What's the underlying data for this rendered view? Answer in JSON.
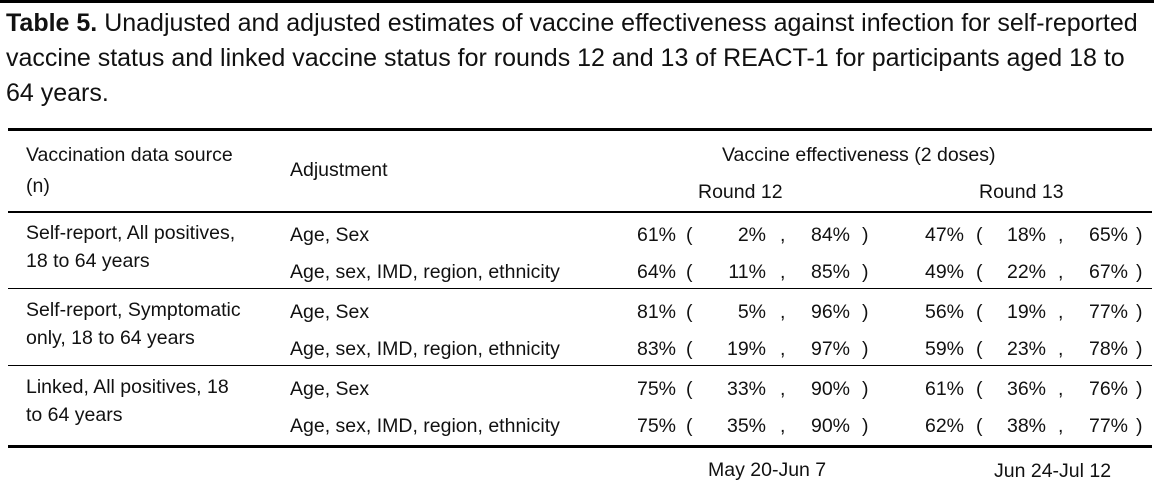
{
  "caption": {
    "label": "Table 5.",
    "text": " Unadjusted and adjusted estimates of vaccine effectiveness against infection for self-reported vaccine status and linked vaccine status for rounds 12 and 13 of REACT-1 for participants aged 18 to 64 years."
  },
  "header": {
    "source_line1": "Vaccination data source",
    "source_line2": "(n)",
    "adjustment": "Adjustment",
    "ve_title": "Vaccine effectiveness (2 doses)",
    "round12": "Round 12",
    "round13": "Round 13"
  },
  "groups": [
    {
      "source_line1": "Self-report, All positives,",
      "source_line2": "18 to 64 years",
      "rows": [
        {
          "adjustment": "Age, Sex",
          "r12": {
            "est": "61%",
            "lo": "2%",
            "hi": "84%"
          },
          "r13": {
            "est": "47%",
            "lo": "18%",
            "hi": "65%"
          }
        },
        {
          "adjustment": "Age, sex, IMD, region, ethnicity",
          "r12": {
            "est": "64%",
            "lo": "11%",
            "hi": "85%"
          },
          "r13": {
            "est": "49%",
            "lo": "22%",
            "hi": "67%"
          }
        }
      ]
    },
    {
      "source_line1": "Self-report, Symptomatic",
      "source_line2": "only, 18 to 64 years",
      "rows": [
        {
          "adjustment": "Age, Sex",
          "r12": {
            "est": "81%",
            "lo": "5%",
            "hi": "96%"
          },
          "r13": {
            "est": "56%",
            "lo": "19%",
            "hi": "77%"
          }
        },
        {
          "adjustment": "Age, sex, IMD, region, ethnicity",
          "r12": {
            "est": "83%",
            "lo": "19%",
            "hi": "97%"
          },
          "r13": {
            "est": "59%",
            "lo": "23%",
            "hi": "78%"
          }
        }
      ]
    },
    {
      "source_line1": "Linked, All positives, 18",
      "source_line2": "to 64 years",
      "rows": [
        {
          "adjustment": "Age, Sex",
          "r12": {
            "est": "75%",
            "lo": "33%",
            "hi": "90%"
          },
          "r13": {
            "est": "61%",
            "lo": "36%",
            "hi": "76%"
          }
        },
        {
          "adjustment": "Age, sex, IMD, region, ethnicity",
          "r12": {
            "est": "75%",
            "lo": "35%",
            "hi": "90%"
          },
          "r13": {
            "est": "62%",
            "lo": "38%",
            "hi": "77%"
          }
        }
      ]
    }
  ],
  "footer": {
    "round12_dates": "May 20-Jun 7",
    "round13_dates": "Jun 24-Jul 12"
  },
  "symbols": {
    "open": "(",
    "comma": ",",
    "close": ")"
  }
}
